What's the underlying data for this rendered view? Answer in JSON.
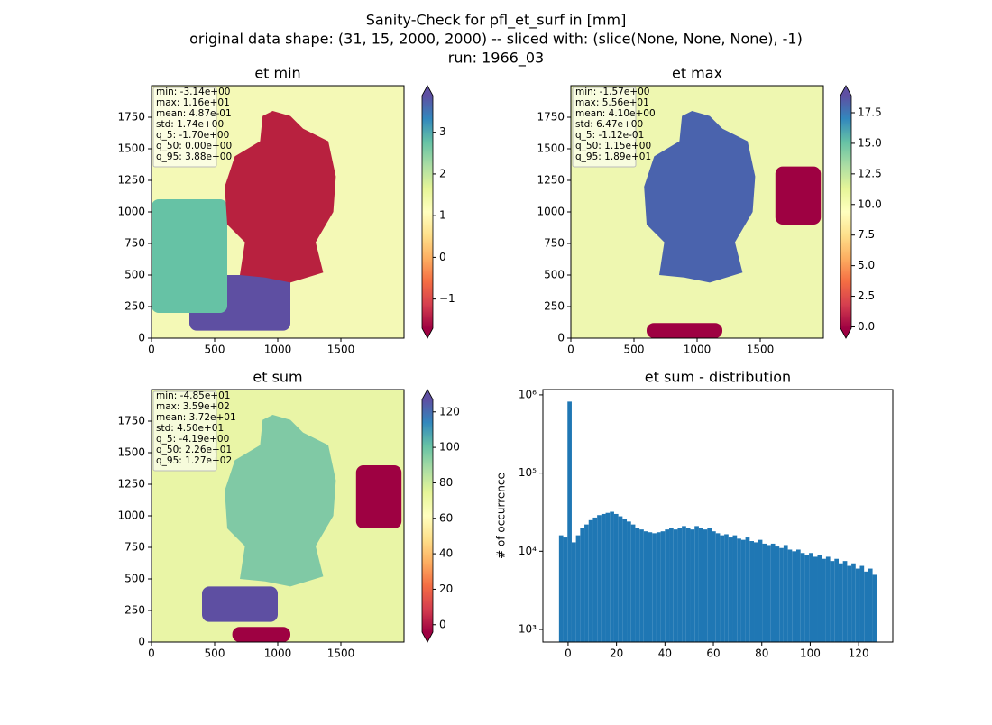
{
  "title": [
    "Sanity-Check for pfl_et_surf in [mm]",
    "original data shape: (31, 15, 2000, 2000) -- sliced with: (slice(None, None, None), -1)",
    "run: 1966_03"
  ],
  "chart_data": [
    {
      "type": "heatmap",
      "title": "et min",
      "xlim": [
        0,
        2000
      ],
      "ylim": [
        0,
        2000
      ],
      "xticks": [
        0,
        500,
        1000,
        1500
      ],
      "yticks": [
        0,
        250,
        500,
        750,
        1000,
        1250,
        1500,
        1750
      ],
      "stats": [
        "min: -3.14e+00",
        "max: 1.16e+01",
        "mean: 4.87e-01",
        "std: 1.74e+00",
        "q_5: -1.70e+00",
        "q_50: 0.00e+00",
        "q_95: 3.88e+00"
      ],
      "colorbar": {
        "lim": [
          -1.7,
          3.88
        ],
        "ticks": [
          {
            "value": -1,
            "label": "−1"
          },
          0,
          1,
          2,
          3
        ],
        "extend": "both",
        "colors": [
          "#9e0142",
          "#d53e4f",
          "#f46d43",
          "#fdae61",
          "#fee08b",
          "#ffffbf",
          "#e6f598",
          "#abdda4",
          "#66c2a5",
          "#3288bd",
          "#5e4fa2"
        ]
      }
    },
    {
      "type": "heatmap",
      "title": "et max",
      "xlim": [
        0,
        2000
      ],
      "ylim": [
        0,
        2000
      ],
      "xticks": [
        0,
        500,
        1000,
        1500
      ],
      "yticks": [
        0,
        250,
        500,
        750,
        1000,
        1250,
        1500,
        1750
      ],
      "stats": [
        "min: -1.57e+00",
        "max: 5.56e+01",
        "mean: 4.10e+00",
        "std: 6.47e+00",
        "q_5: -1.12e-01",
        "q_50: 1.15e+00",
        "q_95: 1.89e+01"
      ],
      "colorbar": {
        "lim": [
          -0.112,
          18.9
        ],
        "ticks": [
          {
            "value": 0,
            "label": "0.0"
          },
          2.5,
          {
            "value": 5,
            "label": "5.0"
          },
          7.5,
          {
            "value": 10,
            "label": "10.0"
          },
          12.5,
          {
            "value": 15,
            "label": "15.0"
          },
          17.5
        ],
        "extend": "both",
        "colors": [
          "#9e0142",
          "#d53e4f",
          "#f46d43",
          "#fdae61",
          "#fee08b",
          "#ffffbf",
          "#e6f598",
          "#abdda4",
          "#66c2a5",
          "#3288bd",
          "#5e4fa2"
        ]
      }
    },
    {
      "type": "heatmap",
      "title": "et sum",
      "xlim": [
        0,
        2000
      ],
      "ylim": [
        0,
        2000
      ],
      "xticks": [
        0,
        500,
        1000,
        1500
      ],
      "yticks": [
        0,
        250,
        500,
        750,
        1000,
        1250,
        1500,
        1750
      ],
      "stats": [
        "min: -4.85e+01",
        "max: 3.59e+02",
        "mean: 3.72e+01",
        "std: 4.50e+01",
        "q_5: -4.19e+00",
        "q_50: 2.26e+01",
        "q_95: 1.27e+02"
      ],
      "colorbar": {
        "lim": [
          -4.19,
          127
        ],
        "ticks": [
          0,
          20,
          40,
          60,
          80,
          100,
          120
        ],
        "extend": "both",
        "colors": [
          "#9e0142",
          "#d53e4f",
          "#f46d43",
          "#fdae61",
          "#fee08b",
          "#ffffbf",
          "#e6f598",
          "#abdda4",
          "#66c2a5",
          "#3288bd",
          "#5e4fa2"
        ]
      }
    },
    {
      "type": "histogram",
      "title": "et sum - distribution",
      "ylabel": "# of occurrence",
      "color": "#1f77b4",
      "log": true,
      "xlim": [
        -10.4,
        134.1
      ],
      "ylim": [
        690,
        1170000
      ],
      "xticks": [
        0,
        20,
        40,
        60,
        80,
        100,
        120
      ],
      "yticks": [
        {
          "value": 1000,
          "label": "10³"
        },
        {
          "value": 10000,
          "label": "10⁴"
        },
        {
          "value": 100000,
          "label": "10⁵"
        },
        {
          "value": 1000000,
          "label": "10⁶"
        }
      ],
      "bins": [
        -3.75,
        -2,
        -0.25,
        1.5,
        3.25,
        5,
        6.75,
        8.5,
        10.25,
        12,
        13.75,
        15.5,
        17.25,
        19,
        20.75,
        22.5,
        24.25,
        26,
        27.75,
        29.5,
        31.25,
        33,
        34.75,
        36.5,
        38.25,
        40,
        41.75,
        43.5,
        45.25,
        47,
        48.75,
        50.5,
        52.25,
        54,
        55.75,
        57.5,
        59.25,
        61,
        62.75,
        64.5,
        66.25,
        68,
        69.75,
        71.5,
        73.25,
        75,
        76.75,
        78.5,
        80.25,
        82,
        83.75,
        85.5,
        87.25,
        89,
        90.75,
        92.5,
        94.25,
        96,
        97.75,
        99.5,
        101.25,
        103,
        104.75,
        106.5,
        108.25,
        110,
        111.75,
        113.5,
        115.25,
        117,
        118.75,
        120.5,
        122.25,
        124,
        125.75,
        127.5
      ],
      "counts": [
        16000,
        15000,
        820000,
        13000,
        16000,
        20000,
        22000,
        25000,
        27000,
        29000,
        30000,
        31000,
        32000,
        30000,
        28000,
        26000,
        24000,
        22000,
        20000,
        19000,
        18000,
        17500,
        17000,
        17500,
        18000,
        19000,
        20000,
        19000,
        20000,
        21000,
        20000,
        19000,
        21000,
        20000,
        19000,
        20000,
        18000,
        17000,
        16000,
        16500,
        15000,
        16000,
        14500,
        14000,
        15000,
        13500,
        13000,
        14000,
        12500,
        12000,
        12500,
        11500,
        11000,
        12000,
        10500,
        10000,
        10500,
        9500,
        9000,
        9500,
        8500,
        9000,
        8000,
        8500,
        7500,
        8000,
        7000,
        7500,
        6500,
        7000,
        6000,
        6500,
        5500,
        6000,
        5000
      ]
    }
  ]
}
